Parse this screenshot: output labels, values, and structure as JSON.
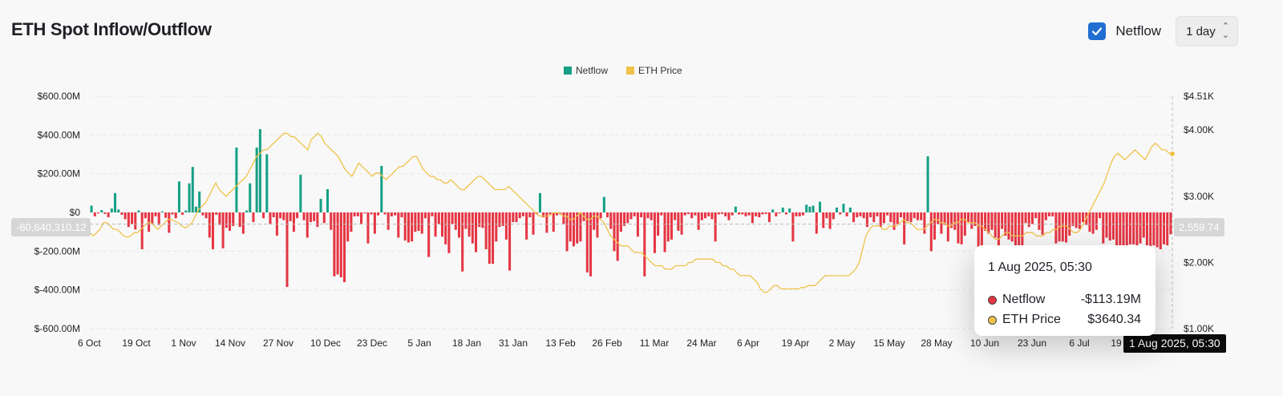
{
  "header": {
    "title": "ETH Spot Inflow/Outflow",
    "netflow_checkbox_label": "Netflow",
    "interval_value": "1 day"
  },
  "colors": {
    "positive": "#16a085",
    "negative": "#e53543",
    "price": "#f0c24a",
    "accent": "#1f6fd2"
  },
  "chart_data": {
    "type": "bar",
    "legend": [
      "Netflow",
      "ETH Price"
    ],
    "legend_position": "top-center",
    "y_left": {
      "ticks": [
        "$600.00M",
        "$400.00M",
        "$200.00M",
        "$0",
        "$-200.00M",
        "$-400.00M",
        "$-600.00M"
      ],
      "range": [
        -600,
        600
      ],
      "unit": "M USD"
    },
    "y_right": {
      "ticks": [
        "$4.51K",
        "$4.00K",
        "$3.00K",
        "$2.00K",
        "$1.00K"
      ],
      "range": [
        1000,
        4510
      ]
    },
    "x_ticks": [
      "6 Oct",
      "19 Oct",
      "1 Nov",
      "14 Nov",
      "27 Nov",
      "10 Dec",
      "23 Dec",
      "5 Jan",
      "18 Jan",
      "31 Jan",
      "13 Feb",
      "26 Feb",
      "11 Mar",
      "24 Mar",
      "6 Apr",
      "19 Apr",
      "2 May",
      "15 May",
      "28 May",
      "10 Jun",
      "23 Jun",
      "6 Jul",
      "19"
    ],
    "grid": true,
    "series": [
      {
        "name": "Netflow",
        "unit": "M USD",
        "values": [
          35,
          -20,
          -5,
          12,
          -8,
          -25,
          20,
          100,
          15,
          -12,
          -35,
          -75,
          -60,
          -88,
          10,
          -190,
          -30,
          -100,
          -60,
          -20,
          -65,
          5,
          -28,
          -105,
          -10,
          -30,
          160,
          -12,
          10,
          150,
          235,
          30,
          108,
          -15,
          -30,
          -130,
          -190,
          -12,
          -65,
          -185,
          -80,
          -95,
          -70,
          335,
          -75,
          -110,
          10,
          150,
          -50,
          335,
          430,
          -30,
          300,
          -60,
          -25,
          -120,
          -30,
          -40,
          -385,
          -45,
          -100,
          -30,
          195,
          -40,
          -130,
          -50,
          -45,
          -75,
          70,
          -55,
          120,
          -90,
          -330,
          -320,
          -335,
          -360,
          -150,
          -100,
          -20,
          -20,
          -60,
          -5,
          -160,
          -10,
          -110,
          -15,
          240,
          -10,
          -90,
          -20,
          -15,
          -130,
          -25,
          -145,
          -155,
          -150,
          -100,
          -95,
          -110,
          -30,
          -230,
          -20,
          -125,
          -60,
          -125,
          -165,
          -210,
          -60,
          -90,
          -130,
          -305,
          -85,
          -125,
          -160,
          -205,
          -75,
          -80,
          -190,
          -265,
          -265,
          -150,
          -75,
          -70,
          -140,
          -300,
          -50,
          -50,
          -30,
          -20,
          -140,
          -25,
          -115,
          -10,
          100,
          -25,
          -105,
          -10,
          -100,
          -15,
          -10,
          -60,
          -200,
          -150,
          -175,
          -160,
          -150,
          -45,
          -310,
          -330,
          -90,
          -130,
          -30,
          80,
          -25,
          -85,
          -200,
          -250,
          -100,
          -70,
          -55,
          -35,
          -20,
          -125,
          -25,
          -330,
          -30,
          -40,
          -210,
          -120,
          -15,
          -205,
          -150,
          -140,
          -40,
          -95,
          -115,
          -15,
          -8,
          -30,
          -15,
          -90,
          -40,
          -30,
          -20,
          -35,
          -150,
          -10,
          -8,
          -20,
          -40,
          -15,
          30,
          -10,
          -10,
          -20,
          -15,
          -55,
          -20,
          -25,
          -10,
          -8,
          -50,
          15,
          -20,
          -5,
          25,
          -10,
          20,
          -150,
          -20,
          -20,
          -15,
          40,
          30,
          35,
          -110,
          55,
          -80,
          -30,
          -85,
          -35,
          25,
          -10,
          45,
          -20,
          25,
          -50,
          -25,
          -20,
          -30,
          -75,
          -25,
          -50,
          -20,
          -75,
          -55,
          -15,
          -50,
          -90,
          -60,
          -25,
          -165,
          -45,
          -50,
          -30,
          -40,
          -40,
          -110,
          290,
          -200,
          -140,
          -60,
          -110,
          -65,
          -150,
          -80,
          -90,
          -160,
          -165,
          -120,
          -50,
          -85,
          -70,
          -230,
          -180,
          -95,
          -110,
          -90,
          -130,
          -310,
          -85,
          -120,
          -140,
          -150,
          -175,
          -170,
          -200,
          -55,
          -75,
          -60,
          -30,
          -90,
          -115,
          -40,
          -20,
          -20,
          -160,
          -150,
          -150,
          -155,
          -120,
          -70,
          -80,
          -85,
          -50,
          -65,
          -100,
          -110,
          -90,
          -30,
          -160,
          -130,
          -145,
          -140,
          -190,
          -210,
          -170,
          -180,
          -165,
          -165,
          -180,
          -160,
          -130,
          -190,
          -180,
          -170,
          -180,
          -190,
          -165,
          -170,
          -113
        ]
      },
      {
        "name": "ETH Price",
        "unit": "USD",
        "values": [
          2450,
          2400,
          2450,
          2500,
          2600,
          2600,
          2550,
          2500,
          2500,
          2450,
          2400,
          2380,
          2400,
          2450,
          2450,
          2500,
          2550,
          2600,
          2600,
          2550,
          2500,
          2550,
          2600,
          2650,
          2650,
          2620,
          2600,
          2550,
          2520,
          2550,
          2600,
          2700,
          2800,
          2850,
          2900,
          3000,
          3100,
          3200,
          3100,
          3050,
          3000,
          3050,
          3100,
          3150,
          3200,
          3250,
          3300,
          3400,
          3500,
          3600,
          3650,
          3700,
          3700,
          3750,
          3800,
          3850,
          3900,
          3950,
          3950,
          3900,
          3900,
          3850,
          3800,
          3750,
          3700,
          3850,
          3900,
          3950,
          3900,
          3800,
          3750,
          3700,
          3650,
          3600,
          3500,
          3400,
          3350,
          3300,
          3400,
          3500,
          3450,
          3400,
          3350,
          3300,
          3350,
          3350,
          3300,
          3250,
          3300,
          3350,
          3400,
          3450,
          3450,
          3500,
          3550,
          3600,
          3600,
          3500,
          3400,
          3350,
          3300,
          3300,
          3250,
          3250,
          3200,
          3200,
          3250,
          3200,
          3150,
          3100,
          3100,
          3150,
          3200,
          3250,
          3300,
          3300,
          3250,
          3200,
          3150,
          3100,
          3100,
          3100,
          3100,
          3150,
          3100,
          3050,
          3000,
          2950,
          2900,
          2850,
          2800,
          2750,
          2700,
          2700,
          2700,
          2700,
          2750,
          2750,
          2750,
          2700,
          2700,
          2650,
          2650,
          2700,
          2750,
          2700,
          2650,
          2650,
          2700,
          2700,
          2650,
          2600,
          2500,
          2400,
          2350,
          2300,
          2250,
          2250,
          2250,
          2200,
          2150,
          2150,
          2150,
          2100,
          2050,
          2000,
          1950,
          1950,
          1950,
          1900,
          1900,
          1900,
          1950,
          1950,
          1950,
          1950,
          2000,
          2000,
          2050,
          2050,
          2050,
          2050,
          2050,
          2050,
          2000,
          2000,
          1950,
          1950,
          1900,
          1900,
          1850,
          1800,
          1800,
          1800,
          1800,
          1750,
          1700,
          1600,
          1550,
          1550,
          1600,
          1650,
          1650,
          1600,
          1600,
          1600,
          1600,
          1600,
          1600,
          1620,
          1620,
          1650,
          1650,
          1650,
          1700,
          1750,
          1800,
          1800,
          1800,
          1800,
          1800,
          1800,
          1800,
          1800,
          1850,
          1900,
          2000,
          2200,
          2400,
          2500,
          2550,
          2550,
          2550,
          2500,
          2500,
          2550,
          2550,
          2550,
          2600,
          2650,
          2600,
          2600,
          2550,
          2500,
          2500,
          2500,
          2550,
          2600,
          2650,
          2650,
          2600,
          2600,
          2550,
          2550,
          2600,
          2600,
          2650,
          2650,
          2600,
          2600,
          2600,
          2550,
          2550,
          2500,
          2450,
          2400,
          2350,
          2350,
          2400,
          2450,
          2450,
          2400,
          2400,
          2400,
          2400,
          2450,
          2450,
          2450,
          2400,
          2400,
          2400,
          2450,
          2450,
          2500,
          2500,
          2550,
          2550,
          2550,
          2500,
          2450,
          2450,
          2500,
          2600,
          2700,
          2800,
          2900,
          3000,
          3100,
          3200,
          3350,
          3500,
          3600,
          3650,
          3600,
          3550,
          3600,
          3650,
          3700,
          3650,
          3600,
          3550,
          3650,
          3750,
          3800,
          3750,
          3700,
          3700,
          3650,
          3640
        ]
      }
    ],
    "crosshair": {
      "netflow_label": "-60,640,310.12",
      "price_label": "2,559.74",
      "date_label": "1 Aug 2025, 05:30"
    },
    "tooltip": {
      "date": "1 Aug 2025, 05:30",
      "netflow_label": "Netflow",
      "netflow_value": "-$113.19M",
      "price_label": "ETH Price",
      "price_value": "$3640.34"
    }
  }
}
